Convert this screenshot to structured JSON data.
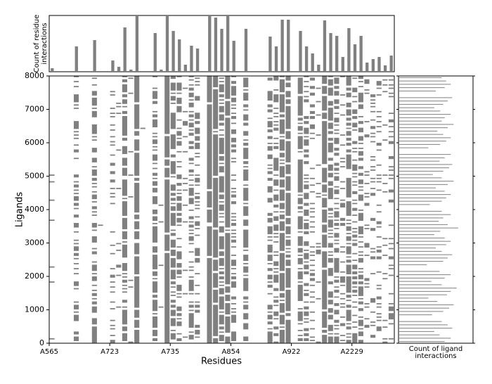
{
  "chart_data": {
    "type": "interaction-matrix",
    "xlabel": "Residues",
    "ylabel": "Ligands",
    "top_ylabel": [
      "Count of residue",
      "interactions"
    ],
    "right_xlabel": [
      "Count of ligand",
      "interactions"
    ],
    "categories": [
      "A565",
      null,
      null,
      null,
      null,
      null,
      null,
      null,
      null,
      null,
      "A723",
      null,
      null,
      null,
      null,
      null,
      null,
      null,
      null,
      null,
      "A735",
      null,
      null,
      null,
      null,
      null,
      null,
      null,
      null,
      null,
      "A854",
      null,
      null,
      null,
      null,
      null,
      null,
      null,
      null,
      null,
      "A922",
      null,
      null,
      null,
      null,
      null,
      null,
      null,
      null,
      null,
      "A2229",
      null,
      null,
      null,
      null,
      null,
      null
    ],
    "residue_counts": [
      5,
      0,
      0,
      0,
      36,
      1,
      0,
      45,
      1,
      0,
      16,
      7,
      63,
      3,
      80,
      1,
      0,
      55,
      3,
      80,
      58,
      46,
      10,
      37,
      33,
      0,
      80,
      77,
      61,
      80,
      44,
      0,
      61,
      0,
      0,
      0,
      50,
      36,
      74,
      74,
      0,
      58,
      36,
      26,
      10,
      73,
      55,
      51,
      21,
      62,
      39,
      51,
      13,
      18,
      21,
      9,
      23
    ],
    "residue_lim": [
      0,
      80
    ],
    "ligand_counts": [
      62,
      70,
      55,
      48,
      72,
      66,
      58,
      0,
      45,
      60,
      68,
      74,
      52,
      40,
      65,
      70,
      78,
      58,
      44,
      62,
      70,
      55,
      0,
      38,
      60,
      66,
      72,
      58,
      50,
      64,
      70,
      62,
      48,
      56,
      80,
      66,
      54,
      60,
      70,
      58,
      0,
      42,
      58,
      64,
      70,
      62,
      50,
      66,
      74,
      58,
      46,
      60,
      68,
      72,
      55,
      62,
      70,
      0,
      40,
      56,
      64,
      70,
      60,
      52,
      66,
      74,
      58,
      62,
      70,
      56,
      48,
      60,
      66,
      72,
      0,
      50,
      62,
      70,
      64,
      58
    ],
    "ligand_lim": [
      0,
      100
    ],
    "color": "#808080",
    "ylim": [
      0,
      8000
    ],
    "yticks": [
      0,
      1000,
      2000,
      3000,
      4000,
      5000,
      6000,
      7000,
      8000
    ]
  }
}
